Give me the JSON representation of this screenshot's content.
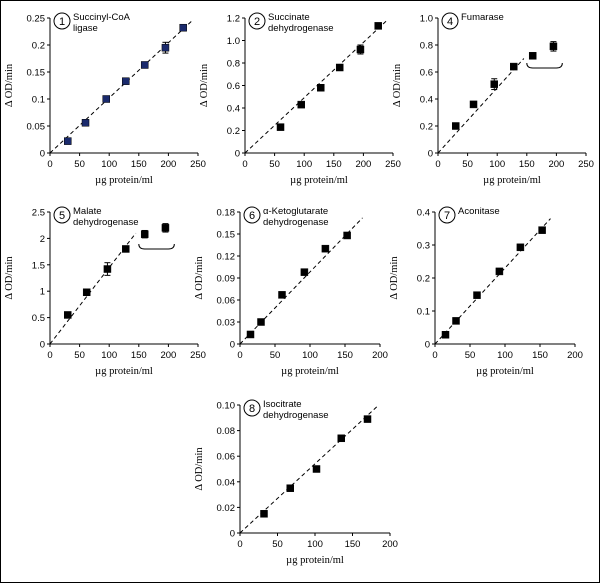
{
  "chart_data": [
    {
      "type": "scatter",
      "panel_number": "1",
      "title": [
        "Succinyl-CoA",
        "ligase"
      ],
      "xlabel": "µg protein/ml",
      "ylabel": "Δ OD/min",
      "xlim": [
        0,
        250
      ],
      "ylim": [
        0,
        0.25
      ],
      "xticks": [
        0,
        50,
        100,
        150,
        200,
        250
      ],
      "xtick_labels": [
        "0",
        "50",
        "100",
        "150",
        "200",
        "250"
      ],
      "yticks": [
        0,
        0.05,
        0.1,
        0.15,
        0.2,
        0.25
      ],
      "ytick_labels": [
        "0",
        "0.05",
        "0.1",
        "0.15",
        "0.2",
        "0.25"
      ],
      "marker_color": "#1a2a6c",
      "x": [
        30,
        60,
        95,
        128,
        160,
        195,
        225
      ],
      "y": [
        0.022,
        0.056,
        0.1,
        0.133,
        0.163,
        0.195,
        0.232
      ],
      "yerr": [
        0,
        0,
        0,
        0,
        0,
        0.01,
        0
      ],
      "fit_line": {
        "x": [
          0,
          240
        ],
        "y": [
          0,
          0.245
        ]
      }
    },
    {
      "type": "scatter",
      "panel_number": "2",
      "title": [
        "Succinate",
        "dehydrogenase"
      ],
      "xlabel": "µg protein/ml",
      "ylabel": "Δ OD/min",
      "xlim": [
        0,
        250
      ],
      "ylim": [
        0,
        1.2
      ],
      "xticks": [
        0,
        50,
        100,
        150,
        200,
        250
      ],
      "xtick_labels": [
        "0",
        "50",
        "100",
        "150",
        "200",
        "250"
      ],
      "yticks": [
        0,
        0.2,
        0.4,
        0.6,
        0.8,
        1.0,
        1.2
      ],
      "ytick_labels": [
        "0",
        "0.2",
        "0.4",
        "0.6",
        "0.8",
        "1.0",
        "1.2"
      ],
      "marker_color": "#000000",
      "x": [
        60,
        95,
        128,
        160,
        195,
        225
      ],
      "y": [
        0.23,
        0.43,
        0.58,
        0.76,
        0.92,
        1.13
      ],
      "yerr": [
        0,
        0,
        0,
        0,
        0.04,
        0
      ],
      "fit_line": {
        "x": [
          0,
          240
        ],
        "y": [
          0,
          1.18
        ]
      }
    },
    {
      "type": "scatter",
      "panel_number": "4",
      "title": [
        "Fumarase"
      ],
      "xlabel": "µg protein/ml",
      "ylabel": "Δ OD/min",
      "xlim": [
        0,
        250
      ],
      "ylim": [
        0,
        1.0
      ],
      "xticks": [
        0,
        50,
        100,
        150,
        200,
        250
      ],
      "xtick_labels": [
        "0",
        "50",
        "100",
        "150",
        "200",
        "250"
      ],
      "yticks": [
        0,
        0.2,
        0.4,
        0.6,
        0.8,
        1.0
      ],
      "ytick_labels": [
        "0",
        "0.2",
        "0.4",
        "0.6",
        "0.8",
        "1.0"
      ],
      "marker_color": "#000000",
      "x": [
        30,
        60,
        95,
        128,
        160,
        195
      ],
      "y": [
        0.2,
        0.36,
        0.51,
        0.64,
        0.72,
        0.79
      ],
      "yerr": [
        0,
        0,
        0.04,
        0,
        0,
        0.035
      ],
      "fit_line": {
        "x": [
          0,
          145
        ],
        "y": [
          0,
          0.7
        ]
      },
      "bracket": {
        "x": [
          150,
          210
        ],
        "y": 0.63
      }
    },
    {
      "type": "scatter",
      "panel_number": "5",
      "title": [
        "Malate",
        "dehydrogenase"
      ],
      "xlabel": "µg protein/ml",
      "ylabel": "Δ OD/min",
      "xlim": [
        0,
        250
      ],
      "ylim": [
        0,
        2.5
      ],
      "xticks": [
        0,
        50,
        100,
        150,
        200,
        250
      ],
      "xtick_labels": [
        "0",
        "50",
        "100",
        "150",
        "200",
        "250"
      ],
      "yticks": [
        0,
        0.5,
        1,
        1.5,
        2,
        2.5
      ],
      "ytick_labels": [
        "0",
        "0.5",
        "1",
        "1.5",
        "2",
        "2.5"
      ],
      "marker_color": "#000000",
      "x": [
        30,
        62,
        97,
        128,
        160,
        195
      ],
      "y": [
        0.55,
        0.98,
        1.42,
        1.8,
        2.08,
        2.2
      ],
      "yerr": [
        0,
        0,
        0.12,
        0,
        0.07,
        0.08
      ],
      "fit_line": {
        "x": [
          0,
          145
        ],
        "y": [
          0,
          2.1
        ]
      },
      "bracket": {
        "x": [
          150,
          210
        ],
        "y": 1.8
      }
    },
    {
      "type": "scatter",
      "panel_number": "6",
      "title": [
        "α-Ketoglutarate",
        "dehydrogenase"
      ],
      "xlabel": "µg protein/ml",
      "ylabel": "Δ OD/min",
      "xlim": [
        0,
        200
      ],
      "ylim": [
        0,
        0.18
      ],
      "xticks": [
        0,
        50,
        100,
        150,
        200
      ],
      "xtick_labels": [
        "0",
        "50",
        "100",
        "150",
        "200"
      ],
      "yticks": [
        0,
        0.03,
        0.06,
        0.09,
        0.12,
        0.15,
        0.18
      ],
      "ytick_labels": [
        "0",
        "0.03",
        "0.06",
        "0.09",
        "0.12",
        "0.15",
        "0.18"
      ],
      "marker_color": "#000000",
      "x": [
        15,
        30,
        60,
        92,
        122,
        153
      ],
      "y": [
        0.013,
        0.03,
        0.067,
        0.098,
        0.13,
        0.148
      ],
      "yerr": [
        0,
        0,
        0,
        0,
        0,
        0
      ],
      "fit_line": {
        "x": [
          0,
          175
        ],
        "y": [
          0,
          0.172
        ]
      }
    },
    {
      "type": "scatter",
      "panel_number": "7",
      "title": [
        "Aconitase"
      ],
      "xlabel": "µg protein/ml",
      "ylabel": "Δ OD/min",
      "xlim": [
        0,
        200
      ],
      "ylim": [
        0,
        0.4
      ],
      "xticks": [
        0,
        50,
        100,
        150,
        200
      ],
      "xtick_labels": [
        "0",
        "50",
        "100",
        "150",
        "200"
      ],
      "yticks": [
        0,
        0.1,
        0.2,
        0.3,
        0.4
      ],
      "ytick_labels": [
        "0",
        "0.1",
        "0.2",
        "0.3",
        "0.4"
      ],
      "marker_color": "#000000",
      "x": [
        15,
        30,
        60,
        92,
        122,
        153
      ],
      "y": [
        0.028,
        0.07,
        0.148,
        0.22,
        0.293,
        0.345
      ],
      "yerr": [
        0,
        0,
        0,
        0,
        0,
        0
      ],
      "fit_line": {
        "x": [
          0,
          165
        ],
        "y": [
          0,
          0.38
        ]
      }
    },
    {
      "type": "scatter",
      "panel_number": "8",
      "title": [
        "Isocitrate",
        "dehydrogenase"
      ],
      "xlabel": "µg protein/ml",
      "ylabel": "Δ OD/min",
      "xlim": [
        0,
        200
      ],
      "ylim": [
        0,
        0.1
      ],
      "xticks": [
        0,
        50,
        100,
        150,
        200
      ],
      "xtick_labels": [
        "0",
        "50",
        "100",
        "150",
        "200"
      ],
      "yticks": [
        0,
        0.02,
        0.04,
        0.06,
        0.08,
        0.1
      ],
      "ytick_labels": [
        "0",
        "0.02",
        "0.04",
        "0.06",
        "0.08",
        "0.10"
      ],
      "marker_color": "#000000",
      "x": [
        32,
        67,
        102,
        135,
        170
      ],
      "y": [
        0.015,
        0.035,
        0.05,
        0.074,
        0.089
      ],
      "yerr": [
        0,
        0,
        0,
        0,
        0
      ],
      "fit_line": {
        "x": [
          0,
          185
        ],
        "y": [
          0,
          0.1
        ]
      }
    }
  ]
}
